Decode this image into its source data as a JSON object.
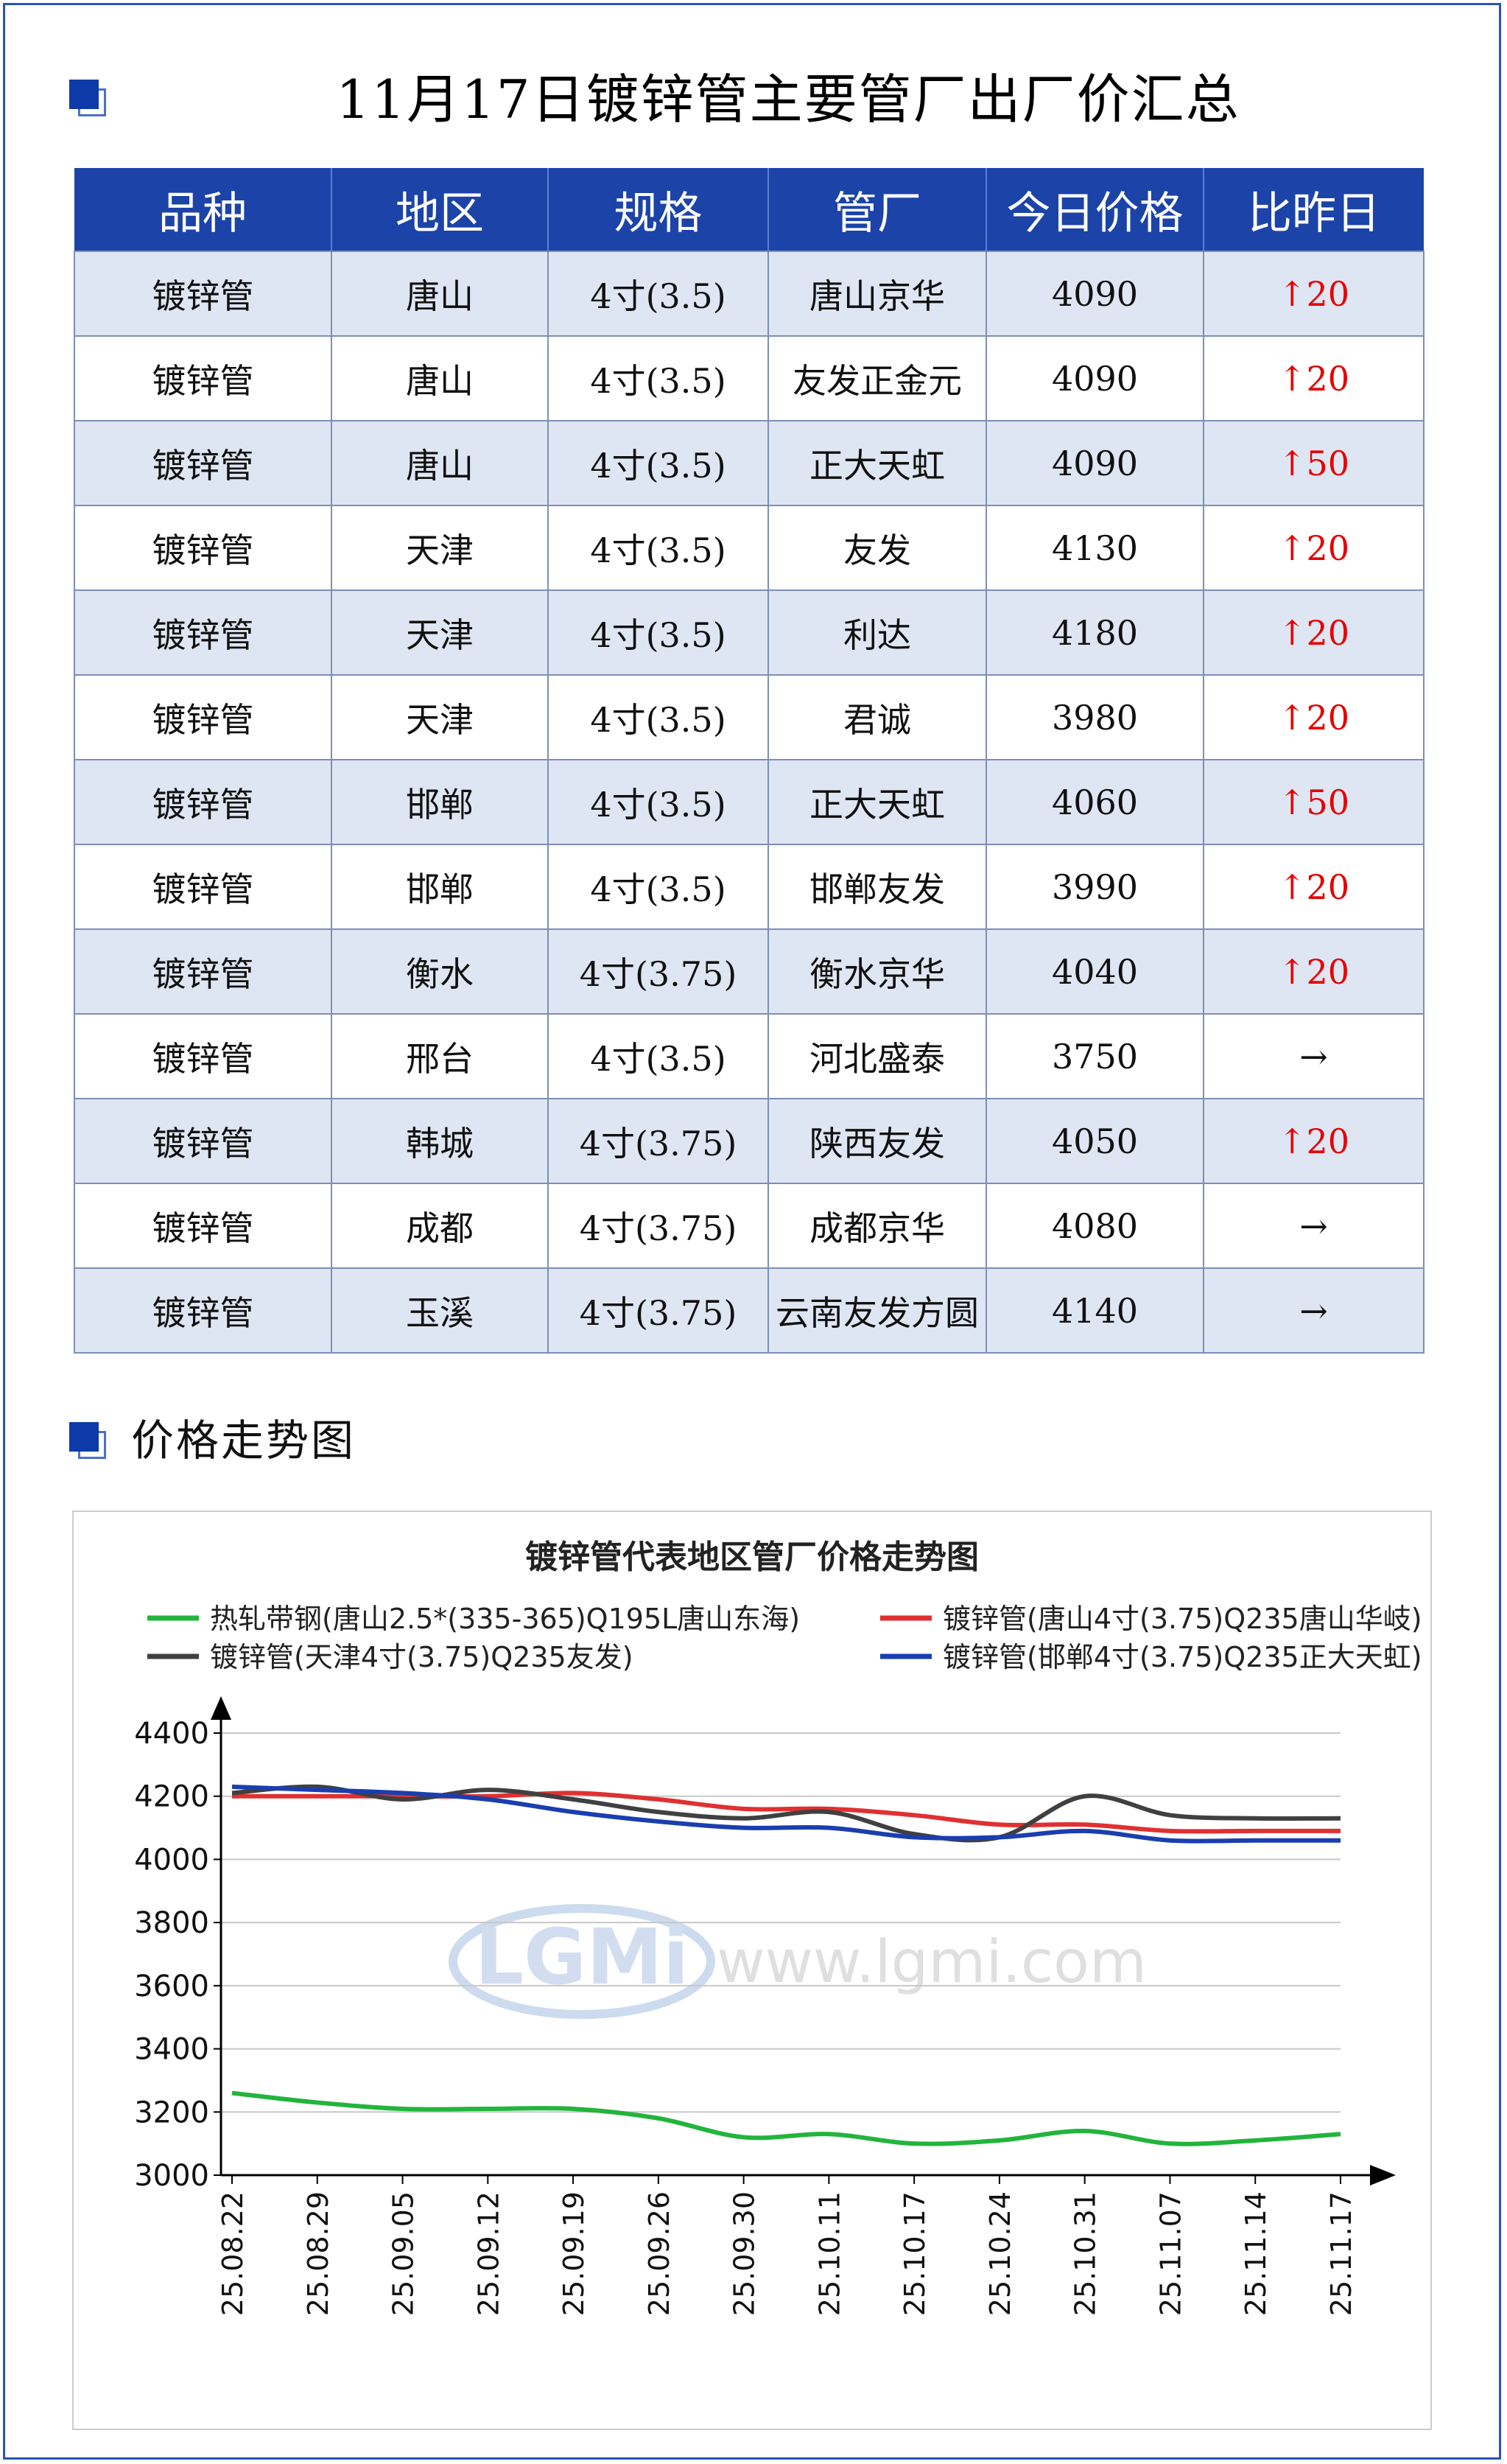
{
  "header": {
    "title": "11月17日镀锌管主要管厂出厂价汇总"
  },
  "table": {
    "columns": [
      "品种",
      "地区",
      "规格",
      "管厂",
      "今日价格",
      "比昨日"
    ],
    "up_arrow": "↑",
    "flat_arrow": "→",
    "rows": [
      {
        "product": "镀锌管",
        "region": "唐山",
        "spec": "4寸(3.5)",
        "mill": "唐山京华",
        "price": "4090",
        "change": "20",
        "direction": "up"
      },
      {
        "product": "镀锌管",
        "region": "唐山",
        "spec": "4寸(3.5)",
        "mill": "友发正金元",
        "price": "4090",
        "change": "20",
        "direction": "up"
      },
      {
        "product": "镀锌管",
        "region": "唐山",
        "spec": "4寸(3.5)",
        "mill": "正大天虹",
        "price": "4090",
        "change": "50",
        "direction": "up"
      },
      {
        "product": "镀锌管",
        "region": "天津",
        "spec": "4寸(3.5)",
        "mill": "友发",
        "price": "4130",
        "change": "20",
        "direction": "up"
      },
      {
        "product": "镀锌管",
        "region": "天津",
        "spec": "4寸(3.5)",
        "mill": "利达",
        "price": "4180",
        "change": "20",
        "direction": "up"
      },
      {
        "product": "镀锌管",
        "region": "天津",
        "spec": "4寸(3.5)",
        "mill": "君诚",
        "price": "3980",
        "change": "20",
        "direction": "up"
      },
      {
        "product": "镀锌管",
        "region": "邯郸",
        "spec": "4寸(3.5)",
        "mill": "正大天虹",
        "price": "4060",
        "change": "50",
        "direction": "up"
      },
      {
        "product": "镀锌管",
        "region": "邯郸",
        "spec": "4寸(3.5)",
        "mill": "邯郸友发",
        "price": "3990",
        "change": "20",
        "direction": "up"
      },
      {
        "product": "镀锌管",
        "region": "衡水",
        "spec": "4寸(3.75)",
        "mill": "衡水京华",
        "price": "4040",
        "change": "20",
        "direction": "up"
      },
      {
        "product": "镀锌管",
        "region": "邢台",
        "spec": "4寸(3.5)",
        "mill": "河北盛泰",
        "price": "3750",
        "change": "",
        "direction": "flat"
      },
      {
        "product": "镀锌管",
        "region": "韩城",
        "spec": "4寸(3.75)",
        "mill": "陕西友发",
        "price": "4050",
        "change": "20",
        "direction": "up"
      },
      {
        "product": "镀锌管",
        "region": "成都",
        "spec": "4寸(3.75)",
        "mill": "成都京华",
        "price": "4080",
        "change": "",
        "direction": "flat"
      },
      {
        "product": "镀锌管",
        "region": "玉溪",
        "spec": "4寸(3.75)",
        "mill": "云南友发方圆",
        "price": "4140",
        "change": "",
        "direction": "flat"
      }
    ]
  },
  "section": {
    "title": "价格走势图"
  },
  "watermark": {
    "logo": "LGMi",
    "url": "www.lgmi.com"
  },
  "chart_data": {
    "type": "line",
    "title": "镀锌管代表地区管厂价格走势图",
    "legend_position": "top",
    "grid": true,
    "ylim": [
      3000,
      4400
    ],
    "yticks": [
      3000,
      3200,
      3400,
      3600,
      3800,
      4000,
      4200,
      4400
    ],
    "categories": [
      "25.08.22",
      "25.08.29",
      "25.09.05",
      "25.09.12",
      "25.09.19",
      "25.09.26",
      "25.09.30",
      "25.10.11",
      "25.10.17",
      "25.10.24",
      "25.10.31",
      "25.11.07",
      "25.11.14",
      "25.11.17"
    ],
    "series": [
      {
        "name": "热轧带钢(唐山2.5*(335-365)Q195L唐山东海)",
        "color": "#22b43c",
        "values": [
          3260,
          3230,
          3210,
          3210,
          3210,
          3180,
          3120,
          3130,
          3100,
          3110,
          3140,
          3100,
          3110,
          3130
        ]
      },
      {
        "name": "镀锌管(唐山4寸(3.75)Q235唐山华岐)",
        "color": "#e03030",
        "values": [
          4200,
          4200,
          4200,
          4200,
          4210,
          4190,
          4160,
          4160,
          4140,
          4110,
          4110,
          4090,
          4090,
          4090
        ]
      },
      {
        "name": "镀锌管(天津4寸(3.75)Q235友发)",
        "color": "#404040",
        "values": [
          4210,
          4230,
          4190,
          4220,
          4190,
          4150,
          4130,
          4150,
          4080,
          4070,
          4200,
          4140,
          4130,
          4130
        ]
      },
      {
        "name": "镀锌管(邯郸4寸(3.75)Q235正大天虹)",
        "color": "#1a3eb0",
        "values": [
          4230,
          4220,
          4210,
          4190,
          4150,
          4120,
          4100,
          4100,
          4070,
          4070,
          4090,
          4060,
          4060,
          4060
        ]
      }
    ]
  }
}
